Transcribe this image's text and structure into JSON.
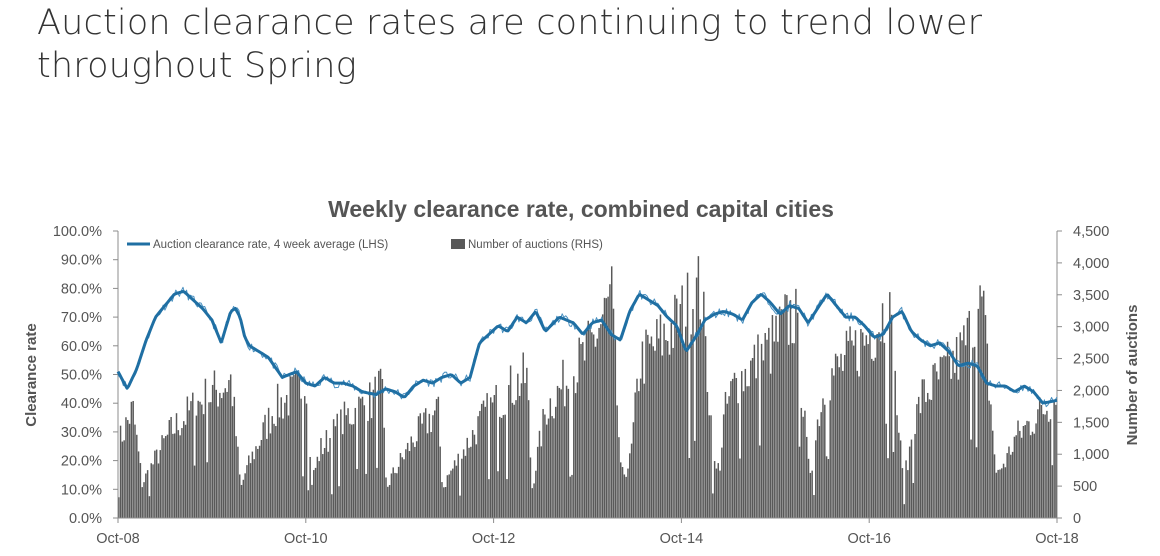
{
  "slide": {
    "title_line1": "Auction clearance rates are continuing to trend lower",
    "title_line2": "throughout Spring"
  },
  "colors": {
    "line": "#1f6fa3",
    "line_thin": "#4a90c0",
    "bars": "#595959",
    "axis": "#8c8c8c",
    "text": "#555555"
  },
  "chart_data": {
    "type": "bar+line",
    "title": "Weekly clearance rate, combined capital cities",
    "ylabel_left": "Clearance rate",
    "ylabel_right": "Number of auctions",
    "ylim_left": [
      0,
      100
    ],
    "ylim_right": [
      0,
      4500
    ],
    "left_ticks": [
      "0.0%",
      "10.0%",
      "20.0%",
      "30.0%",
      "40.0%",
      "50.0%",
      "60.0%",
      "70.0%",
      "80.0%",
      "90.0%",
      "100.0%"
    ],
    "right_ticks": [
      "0",
      "500",
      "1,000",
      "1,500",
      "2,000",
      "2,500",
      "3,000",
      "3,500",
      "4,000",
      "4,500"
    ],
    "x_ticks": [
      "Oct-08",
      "Oct-10",
      "Oct-12",
      "Oct-14",
      "Oct-16",
      "Oct-18"
    ],
    "x_range_years": [
      2008.75,
      2018.75
    ],
    "legend": {
      "line_label": "Auction clearance rate, 4 week average (LHS)",
      "bar_label": "Number of auctions (RHS)"
    },
    "series": [
      {
        "name": "Auction clearance rate, 4 week average (LHS)",
        "type": "line",
        "axis": "left",
        "x": [
          2008.75,
          2008.85,
          2008.95,
          2009.05,
          2009.15,
          2009.25,
          2009.35,
          2009.45,
          2009.55,
          2009.65,
          2009.75,
          2009.85,
          2009.95,
          2010.0,
          2010.05,
          2010.1,
          2010.15,
          2010.25,
          2010.35,
          2010.5,
          2010.65,
          2010.75,
          2010.85,
          2010.95,
          2011.05,
          2011.15,
          2011.25,
          2011.35,
          2011.5,
          2011.6,
          2011.7,
          2011.8,
          2011.9,
          2012.0,
          2012.1,
          2012.2,
          2012.3,
          2012.4,
          2012.5,
          2012.6,
          2012.7,
          2012.8,
          2012.9,
          2013.0,
          2013.1,
          2013.2,
          2013.3,
          2013.45,
          2013.6,
          2013.7,
          2013.8,
          2013.9,
          2014.0,
          2014.1,
          2014.2,
          2014.3,
          2014.4,
          2014.5,
          2014.6,
          2014.7,
          2014.8,
          2014.9,
          2015.0,
          2015.1,
          2015.2,
          2015.3,
          2015.4,
          2015.5,
          2015.6,
          2015.7,
          2015.8,
          2015.9,
          2016.0,
          2016.1,
          2016.2,
          2016.3,
          2016.4,
          2016.5,
          2016.6,
          2016.7,
          2016.8,
          2016.9,
          2017.0,
          2017.1,
          2017.2,
          2017.3,
          2017.4,
          2017.5,
          2017.6,
          2017.7,
          2017.8,
          2017.9,
          2018.0,
          2018.1,
          2018.2,
          2018.3,
          2018.4,
          2018.5,
          2018.6,
          2018.75
        ],
        "values": [
          51,
          45,
          52,
          62,
          70,
          74,
          78,
          79,
          76,
          73,
          69,
          61,
          72,
          73,
          70,
          63,
          60,
          58,
          56,
          49,
          51,
          47,
          46,
          49,
          47,
          47,
          46,
          44,
          43,
          45,
          44,
          42,
          46,
          48,
          47,
          49,
          50,
          47,
          49,
          61,
          64,
          67,
          65,
          70,
          68,
          72,
          65,
          70,
          68,
          64,
          68,
          69,
          64,
          62,
          72,
          78,
          76,
          74,
          70,
          67,
          58,
          63,
          69,
          71,
          72,
          71,
          69,
          75,
          78,
          75,
          71,
          74,
          73,
          68,
          73,
          78,
          74,
          70,
          70,
          67,
          63,
          64,
          70,
          72,
          65,
          62,
          60,
          61,
          58,
          53,
          54,
          53,
          47,
          46,
          46,
          44,
          46,
          44,
          40,
          41
        ]
      },
      {
        "name": "Number of auctions (RHS)",
        "type": "bar",
        "axis": "right",
        "envelope_x": [
          2008.75,
          2008.85,
          2008.9,
          2009.0,
          2009.3,
          2009.6,
          2009.9,
          2009.95,
          2010.05,
          2010.1,
          2010.4,
          2010.65,
          2010.75,
          2010.8,
          2010.9,
          2011.2,
          2011.45,
          2011.55,
          2011.6,
          2011.65,
          2011.9,
          2012.1,
          2012.15,
          2012.2,
          2012.25,
          2012.65,
          2012.95,
          2013.1,
          2013.15,
          2013.2,
          2013.3,
          2013.75,
          2014.0,
          2014.1,
          2014.2,
          2014.3,
          2014.7,
          2014.95,
          2015.1,
          2015.15,
          2015.2,
          2015.3,
          2015.7,
          2015.95,
          2016.1,
          2016.15,
          2016.2,
          2016.3,
          2016.7,
          2016.95,
          2017.1,
          2017.15,
          2017.2,
          2017.3,
          2017.7,
          2017.95,
          2018.1,
          2018.15,
          2018.2,
          2018.3,
          2018.6,
          2018.75
        ],
        "envelope_values": [
          1300,
          1700,
          1900,
          600,
          1500,
          2000,
          2350,
          2400,
          500,
          800,
          1900,
          2200,
          2400,
          600,
          1200,
          1800,
          2050,
          2300,
          500,
          700,
          1400,
          1800,
          1900,
          500,
          700,
          1800,
          2300,
          2450,
          500,
          1000,
          1900,
          2900,
          3800,
          700,
          1000,
          2700,
          3400,
          4000,
          800,
          900,
          1800,
          2300,
          3000,
          3600,
          800,
          1000,
          1800,
          2400,
          3100,
          3700,
          700,
          900,
          1500,
          2100,
          2800,
          3700,
          700,
          900,
          1000,
          1400,
          1900,
          2100
        ]
      }
    ]
  }
}
